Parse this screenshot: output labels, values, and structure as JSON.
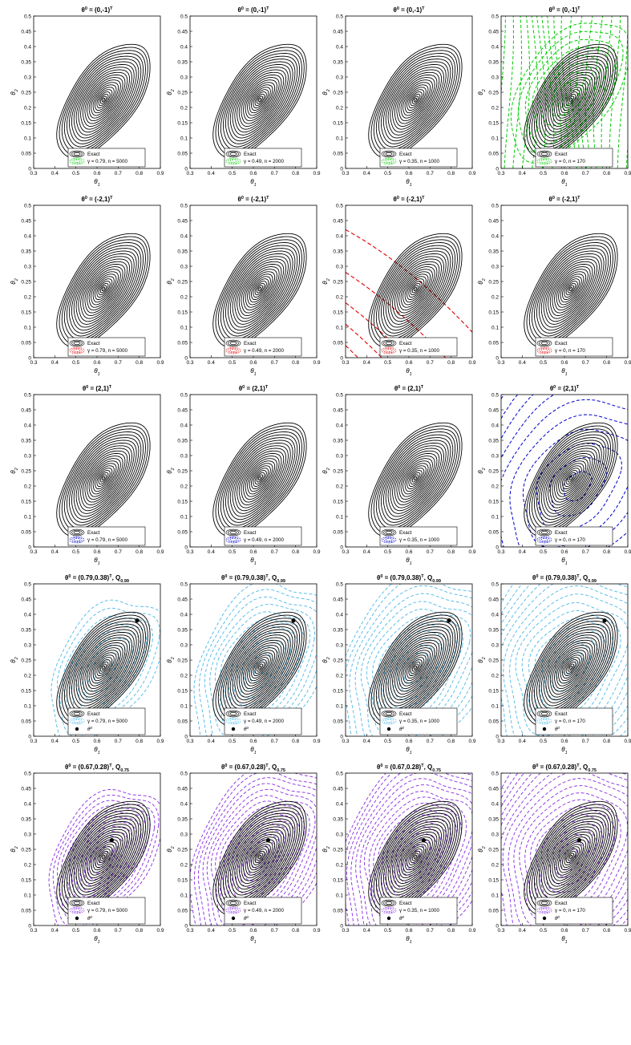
{
  "figure": {
    "axis_labels": {
      "x": "θ1",
      "y": "θ2"
    },
    "legend_exact_label": "Exact",
    "legend_theta0_label": "θ0"
  },
  "rows": [
    {
      "title_main": "θ0 = (0,-1)",
      "title_sup": "T",
      "title_suffix": "",
      "title_sub": "",
      "color": "#00cc00",
      "legends": [
        "γ = 0.79, n = 5000",
        "γ = 0.49, n = 2000",
        "γ = 0.35, n = 1000",
        "γ = 0, n = 170"
      ],
      "show_theta0": false
    },
    {
      "title_main": "θ0 = (-2,1)",
      "title_sup": "T",
      "title_suffix": "",
      "title_sub": "",
      "color": "#e00000",
      "legends": [
        "γ = 0.79, n = 5000",
        "γ = 0.49, n = 2000",
        "γ = 0.35, n = 1000",
        "γ = 0, n = 170"
      ],
      "show_theta0": false
    },
    {
      "title_main": "θ0 = (2,1)",
      "title_sup": "T",
      "title_suffix": "",
      "title_sub": "",
      "color": "#0000cc",
      "legends": [
        "γ = 0.79, n = 5000",
        "γ = 0.49, n = 2000",
        "γ = 0.35, n = 1000",
        "γ = 0, n = 170"
      ],
      "show_theta0": false
    },
    {
      "title_main": "θ0 = (0.79,0.38)",
      "title_sup": "T",
      "title_suffix": ", Q",
      "title_sub": "0.99",
      "color": "#4db8e8",
      "legends": [
        "γ = 0.79, n = 5000",
        "γ = 0.49, n = 2000",
        "γ = 0.35, n = 1000",
        "γ = 0, n = 170"
      ],
      "show_theta0": true
    },
    {
      "title_main": "θ0 = (0.67,0.28)",
      "title_sup": "T",
      "title_suffix": ", Q",
      "title_sub": "0.75",
      "color": "#8a2be2",
      "legends": [
        "γ = 0.79, n = 5000",
        "γ = 0.49, n = 2000",
        "γ = 0.35, n = 1000",
        "γ = 0, n = 170"
      ],
      "show_theta0": true
    }
  ],
  "chart_data": {
    "type": "contour",
    "grid": "5 rows x 4 columns of contour panels",
    "xlim": [
      0.3,
      0.9
    ],
    "ylim": [
      0,
      0.5
    ],
    "xticks": [
      "0.3",
      "0.4",
      "0.5",
      "0.6",
      "0.7",
      "0.8",
      "0.9"
    ],
    "yticks": [
      "0",
      "0.05",
      "0.1",
      "0.15",
      "0.2",
      "0.25",
      "0.3",
      "0.35",
      "0.4",
      "0.45",
      "0.5"
    ],
    "exact_posterior": {
      "center": [
        0.63,
        0.225
      ],
      "correlation": "positive"
    },
    "theta0_points": [
      {
        "row": 4,
        "x": 0.79,
        "y": 0.38
      },
      {
        "row": 5,
        "x": 0.67,
        "y": 0.28
      }
    ],
    "legend_position": "bottom-center"
  }
}
